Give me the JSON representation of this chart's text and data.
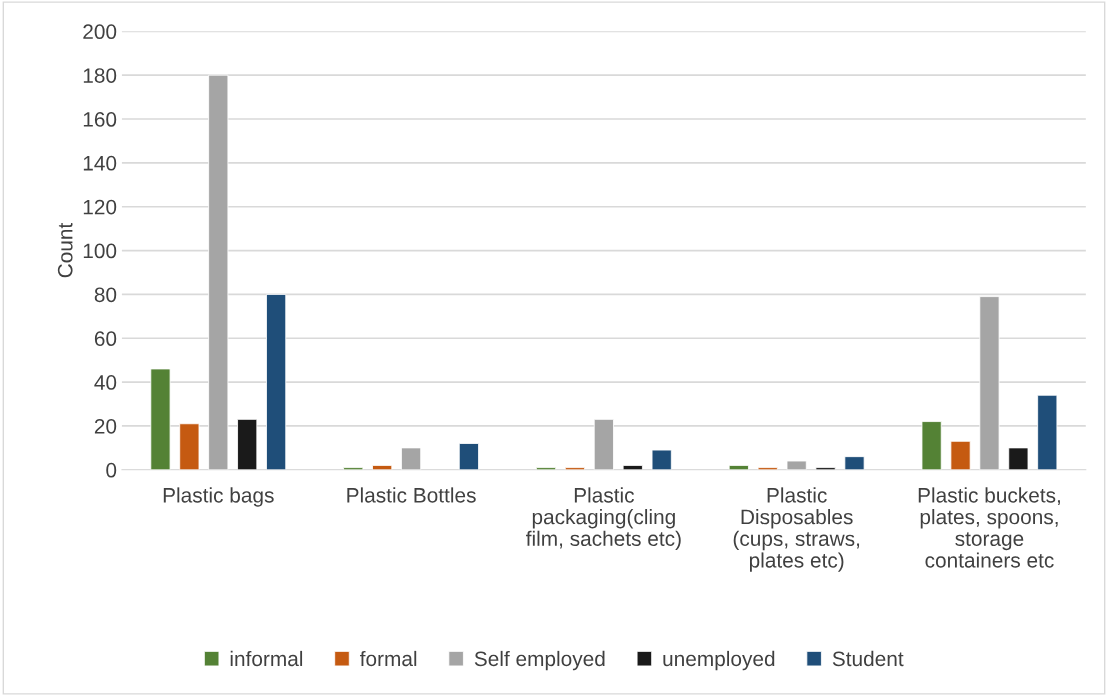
{
  "chart_data": {
    "type": "bar",
    "ylabel": "Count",
    "categories": [
      "Plastic bags",
      "Plastic Bottles",
      "Plastic packaging(cling film, sachets etc)",
      "Plastic Disposables (cups, straws, plates etc)",
      "Plastic buckets, plates, spoons, storage containers etc"
    ],
    "series": [
      {
        "name": "informal",
        "color": "#548235",
        "values": [
          46,
          1,
          1,
          2,
          22
        ]
      },
      {
        "name": "formal",
        "color": "#c55a11",
        "values": [
          21,
          2,
          1,
          1,
          13
        ]
      },
      {
        "name": "Self employed",
        "color": "#a5a5a5",
        "values": [
          180,
          10,
          23,
          4,
          79
        ]
      },
      {
        "name": "unemployed",
        "color": "#1a1a1a",
        "values": [
          23,
          null,
          2,
          1,
          10
        ]
      },
      {
        "name": "Student",
        "color": "#1f4e79",
        "values": [
          80,
          12,
          9,
          6,
          34
        ]
      }
    ],
    "ylim": [
      0,
      200
    ],
    "yticks": [
      0,
      20,
      40,
      60,
      80,
      100,
      120,
      140,
      160,
      180,
      200
    ],
    "grid": "y",
    "legend": "bottom"
  }
}
